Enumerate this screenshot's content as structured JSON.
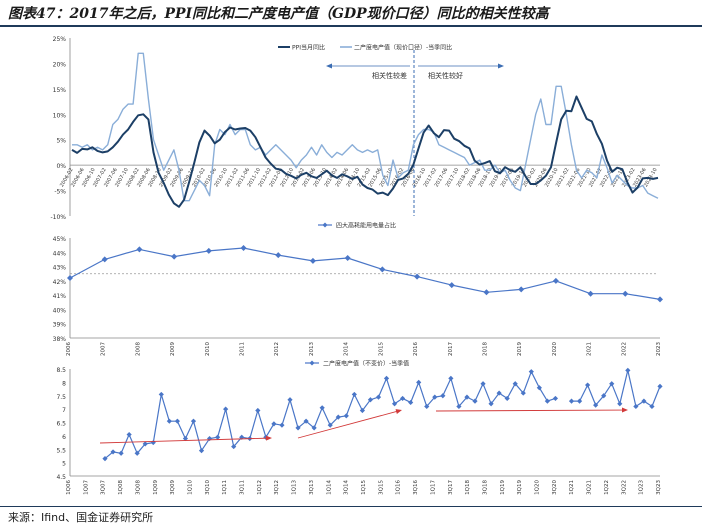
{
  "page": {
    "title": "图表47：2017年之后，PPI同比和二产度电产值（GDP现价口径）同比的相关性较高",
    "source": "来源：Ifind、国金证券研究所"
  },
  "chart_data": [
    {
      "type": "line",
      "ylim": [
        -10,
        25
      ],
      "yticks": [
        "25%",
        "20%",
        "15%",
        "10%",
        "5%",
        "0%",
        "-5%",
        "-10%"
      ],
      "xticks": [
        "2006-02",
        "2006-06",
        "2006-10",
        "2007-02",
        "2007-06",
        "2007-10",
        "2008-02",
        "2008-06",
        "2008-10",
        "2009-02",
        "2009-06",
        "2009-10",
        "2010-02",
        "2010-06",
        "2010-10",
        "2011-02",
        "2011-06",
        "2011-10",
        "2012-02",
        "2012-06",
        "2012-10",
        "2013-02",
        "2013-06",
        "2013-10",
        "2014-02",
        "2014-06",
        "2014-10",
        "2015-02",
        "2015-06",
        "2015-10",
        "2016-02",
        "2016-06",
        "2016-10",
        "2017-02",
        "2017-06",
        "2017-10",
        "2018-02",
        "2018-06",
        "2018-10",
        "2019-02",
        "2019-06",
        "2019-10",
        "2020-02",
        "2020-06",
        "2020-10",
        "2021-02",
        "2021-06",
        "2021-10",
        "2022-02",
        "2022-06",
        "2022-10",
        "2023-02",
        "2023-06",
        "2023-10"
      ],
      "annotations": [
        "相关性较差",
        "相关性较好"
      ],
      "series": [
        {
          "name": "PPI当月同比",
          "color": "#1c3f66",
          "values": [
            3.0,
            2.4,
            3.2,
            3.1,
            3.5,
            2.8,
            2.5,
            2.7,
            3.5,
            4.6,
            6.0,
            7.0,
            8.5,
            9.8,
            10.0,
            9.0,
            2.5,
            -1.5,
            -3.5,
            -5.8,
            -7.5,
            -8.2,
            -6.8,
            -3.3,
            0.5,
            4.5,
            6.8,
            5.8,
            4.3,
            5.0,
            6.5,
            7.4,
            7.0,
            7.2,
            7.3,
            6.8,
            5.5,
            3.5,
            1.5,
            0.3,
            -0.7,
            -0.9,
            -1.7,
            -2.1,
            -2.6,
            -1.9,
            -1.5,
            -2.2,
            -2.5,
            -1.8,
            -1.1,
            -2.0,
            -2.5,
            -1.8,
            -2.2,
            -2.7,
            -2.3,
            -3.8,
            -4.5,
            -4.8,
            -5.6,
            -5.4,
            -5.9,
            -4.6,
            -2.9,
            -2.6,
            -1.7,
            0.1,
            3.3,
            6.4,
            7.8,
            6.3,
            5.5,
            6.9,
            6.8,
            5.2,
            4.7,
            3.8,
            3.3,
            0.9,
            0.1,
            0.4,
            0.8,
            -1.2,
            -1.6,
            -0.4,
            -1.0,
            -1.3,
            -0.4,
            -2.2,
            -3.7,
            -3.7,
            -3.0,
            -2.1,
            -0.4,
            4.4,
            9.0,
            10.7,
            10.6,
            13.5,
            11.3,
            9.1,
            8.6,
            6.1,
            4.2,
            0.9,
            -1.3,
            -0.5,
            -0.8,
            -3.4,
            -5.4,
            -4.4,
            -2.6,
            -2.5,
            -2.7,
            -2.5
          ]
        },
        {
          "name": "二产度电产值（现价口径）-当季同比",
          "color": "#8aaed8",
          "values": [
            4.0,
            4.0,
            3.5,
            4.0,
            3.0,
            3.5,
            3.0,
            4.0,
            8.0,
            9.0,
            11.0,
            12.0,
            12.0,
            22.0,
            22.0,
            13.0,
            5.0,
            2.0,
            -1.0,
            1.0,
            3.0,
            -1.0,
            -7.0,
            -7.0,
            -5.0,
            -3.0,
            -4.0,
            -6.0,
            4.0,
            7.0,
            6.0,
            8.0,
            6.0,
            7.0,
            7.0,
            4.0,
            3.0,
            3.5,
            2.0,
            3.0,
            4.0,
            3.0,
            2.0,
            1.0,
            -0.5,
            1.0,
            2.0,
            3.5,
            2.0,
            4.0,
            2.5,
            1.5,
            2.5,
            2.0,
            3.0,
            4.0,
            3.0,
            2.5,
            3.0,
            2.5,
            3.0,
            -2.0,
            -4.0,
            1.0,
            -2.5,
            -1.5,
            -1.0,
            4.0,
            6.0,
            7.0,
            7.0,
            6.5,
            4.0,
            3.5,
            3.0,
            2.5,
            2.0,
            1.5,
            0.0,
            0.5,
            1.0,
            -1.0,
            -1.0,
            0.0,
            -1.5,
            -1.0,
            -3.0,
            -4.5,
            -5.0,
            0.0,
            5.0,
            10.0,
            13.0,
            8.0,
            8.0,
            15.5,
            15.5,
            10.0,
            4.0,
            -1.0,
            -2.5,
            -1.0,
            -1.5,
            -2.5,
            2.0,
            -0.5,
            -3.5,
            -2.0,
            -3.0,
            -4.0,
            -4.5,
            -4.5,
            -4.0,
            -5.5,
            -6.0,
            -6.5
          ]
        }
      ]
    },
    {
      "type": "line",
      "categories": [
        "2006",
        "2007",
        "2008",
        "2009",
        "2010",
        "2011",
        "2012",
        "2013",
        "2014",
        "2015",
        "2016",
        "2017",
        "2018",
        "2019",
        "2020",
        "2021",
        "2022",
        "2023"
      ],
      "ylim": [
        38,
        45
      ],
      "yticks": [
        "45%",
        "44%",
        "43%",
        "42%",
        "41%",
        "40%",
        "39%",
        "38%"
      ],
      "series": [
        {
          "name": "四大高耗能用电量占比",
          "color": "#4a76c7",
          "values": [
            42.2,
            43.5,
            44.2,
            43.7,
            44.1,
            44.3,
            43.8,
            43.4,
            43.6,
            42.8,
            42.3,
            41.7,
            41.2,
            41.4,
            42.0,
            41.1,
            41.1,
            40.7
          ]
        }
      ],
      "reference_line": 42.5
    },
    {
      "type": "line",
      "xticks": [
        "1Q06",
        "1Q07",
        "3Q07",
        "1Q08",
        "3Q08",
        "1Q09",
        "3Q09",
        "1Q10",
        "3Q10",
        "1Q11",
        "3Q11",
        "1Q12",
        "3Q12",
        "1Q13",
        "3Q13",
        "1Q14",
        "3Q14",
        "1Q15",
        "3Q15",
        "1Q16",
        "3Q16",
        "1Q17",
        "3Q17",
        "1Q18",
        "3Q18",
        "1Q19",
        "3Q19",
        "1Q20",
        "3Q20",
        "1Q21",
        "3Q21",
        "1Q22",
        "3Q22",
        "1Q23",
        "3Q23"
      ],
      "ylim": [
        4.5,
        8.5
      ],
      "yticks": [
        "8.5",
        "8",
        "7.5",
        "7",
        "6.5",
        "6",
        "5.5",
        "5",
        "4.5"
      ],
      "series": [
        {
          "name": "二产度电产值（不变价）-当季值",
          "color": "#4a76c7",
          "values": [
            5.15,
            5.4,
            5.35,
            6.05,
            5.35,
            5.7,
            5.75,
            7.55,
            6.55,
            6.55,
            5.9,
            6.55,
            5.45,
            5.9,
            5.95,
            7.0,
            5.6,
            5.95,
            5.9,
            6.95,
            5.95,
            6.45,
            6.4,
            7.35,
            6.3,
            6.55,
            6.3,
            7.05,
            6.4,
            6.7,
            6.75,
            7.55,
            6.95,
            7.35,
            7.45,
            8.15,
            7.2,
            7.4,
            7.25,
            8.0,
            7.1,
            7.45,
            7.5,
            8.15,
            7.1,
            7.45,
            7.3,
            7.95,
            7.2,
            7.6,
            7.4,
            7.95,
            7.6,
            8.4,
            7.8,
            7.3,
            7.4,
            null,
            7.3,
            7.3,
            7.9,
            7.15,
            7.5,
            7.95,
            7.2,
            8.45,
            7.1,
            7.3,
            7.1,
            7.85
          ]
        }
      ]
    }
  ]
}
